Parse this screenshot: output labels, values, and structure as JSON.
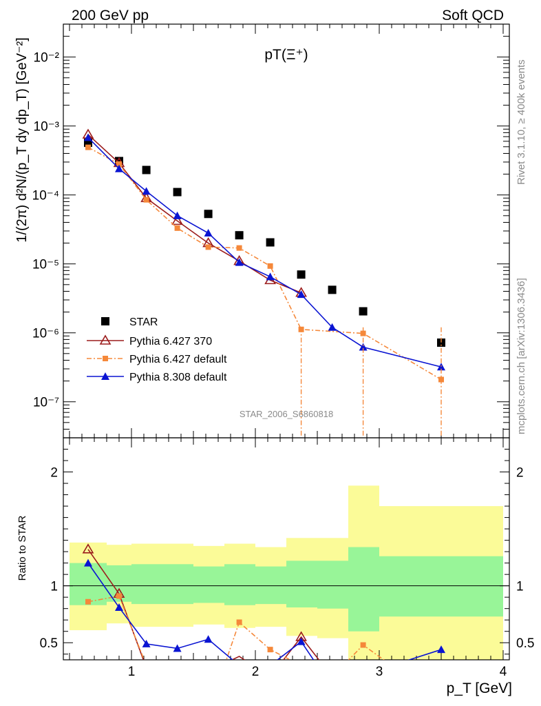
{
  "header": {
    "left": "200 GeV pp",
    "right": "Soft QCD",
    "side_rivet": "Rivet 3.1.10, ≥ 400k events",
    "side_mcplots": "mcplots.cern.ch [arXiv:1306.3436]",
    "watermark": "STAR_2006_S6860818"
  },
  "axes": {
    "ylabel_top": "1/(2π) d²N/(p_T dy dp_T) [GeV⁻²]",
    "ylabel_ratio": "Ratio to STAR",
    "xlabel": "p_T [GeV]",
    "top_yticks": [
      "10⁻⁷",
      "10⁻⁶",
      "10⁻⁵",
      "10⁻⁴",
      "10⁻³",
      "10⁻²"
    ],
    "ratio_yticks": [
      "0.5",
      "1",
      "2"
    ],
    "xticks": [
      "1",
      "2",
      "3",
      "4"
    ]
  },
  "colors": {
    "star": "#000000",
    "py6_370": "#9b1b1b",
    "py6_default": "#f5883a",
    "py8": "#0a14d2",
    "band_inner": "#98f598",
    "band_outer": "#fbfb98"
  },
  "chart_data": {
    "type": "scatter",
    "title": "pT(Ξ⁺)",
    "xlabel": "p_T [GeV]",
    "ylabel": "1/(2π) d²N/(p_T dy dp_T) [GeV⁻²]",
    "xlim": [
      0.45,
      4.05
    ],
    "ylim": [
      3e-08,
      0.03
    ],
    "yscale": "log",
    "legend_position": "bottom-left",
    "series": [
      {
        "name": "STAR",
        "marker": "square",
        "x": [
          0.65,
          0.9,
          1.12,
          1.37,
          1.62,
          1.87,
          2.12,
          2.37,
          2.62,
          2.87,
          3.5
        ],
        "y": [
          0.00057,
          0.00031,
          0.00023,
          0.00011,
          5.3e-05,
          2.6e-05,
          2.05e-05,
          7e-06,
          4.2e-06,
          2.05e-06,
          7.2e-07
        ]
      },
      {
        "name": "Pythia 6.427 370",
        "marker": "open-triangle",
        "x": [
          0.65,
          0.9,
          1.12,
          1.37,
          1.62,
          1.87,
          2.12,
          2.37
        ],
        "y": [
          0.00075,
          0.00029,
          9e-05,
          4.2e-05,
          2e-05,
          1.1e-05,
          5.8e-06,
          3.8e-06
        ]
      },
      {
        "name": "Pythia 6.427 default",
        "marker": "filled-square",
        "x": [
          0.65,
          0.9,
          1.12,
          1.37,
          1.62,
          1.87,
          2.12,
          2.37,
          2.87,
          3.5
        ],
        "y": [
          0.00049,
          0.00028,
          8.5e-05,
          3.3e-05,
          1.75e-05,
          1.7e-05,
          9.3e-06,
          1.12e-06,
          9.8e-07,
          2.1e-07
        ]
      },
      {
        "name": "Pythia 8.308 default",
        "marker": "filled-triangle",
        "x": [
          0.65,
          0.9,
          1.12,
          1.37,
          1.62,
          1.87,
          2.12,
          2.37,
          2.62,
          2.87,
          3.5
        ],
        "y": [
          0.00068,
          0.00024,
          0.000113,
          5e-05,
          2.8e-05,
          1.05e-05,
          6.5e-06,
          3.6e-06,
          1.2e-06,
          6.2e-07,
          3.2e-07
        ]
      }
    ],
    "ratio": {
      "ylabel": "Ratio to STAR",
      "ylim": [
        0.35,
        2.3
      ],
      "bands": [
        {
          "x0": 0.5,
          "x1": 0.8,
          "inner": [
            0.83,
            1.2
          ],
          "outer": [
            0.61,
            1.38
          ]
        },
        {
          "x0": 0.8,
          "x1": 1.0,
          "inner": [
            0.86,
            1.18
          ],
          "outer": [
            0.67,
            1.36
          ]
        },
        {
          "x0": 1.0,
          "x1": 1.25,
          "inner": [
            0.84,
            1.19
          ],
          "outer": [
            0.64,
            1.37
          ]
        },
        {
          "x0": 1.25,
          "x1": 1.5,
          "inner": [
            0.84,
            1.19
          ],
          "outer": [
            0.64,
            1.37
          ]
        },
        {
          "x0": 1.5,
          "x1": 1.75,
          "inner": [
            0.85,
            1.17
          ],
          "outer": [
            0.66,
            1.35
          ]
        },
        {
          "x0": 1.75,
          "x1": 2.0,
          "inner": [
            0.83,
            1.19
          ],
          "outer": [
            0.63,
            1.37
          ]
        },
        {
          "x0": 2.0,
          "x1": 2.25,
          "inner": [
            0.84,
            1.17
          ],
          "outer": [
            0.64,
            1.34
          ]
        },
        {
          "x0": 2.25,
          "x1": 2.5,
          "inner": [
            0.81,
            1.22
          ],
          "outer": [
            0.56,
            1.42
          ]
        },
        {
          "x0": 2.5,
          "x1": 2.75,
          "inner": [
            0.8,
            1.22
          ],
          "outer": [
            0.54,
            1.42
          ]
        },
        {
          "x0": 2.75,
          "x1": 3.0,
          "inner": [
            0.6,
            1.34
          ],
          "outer": [
            0.3,
            1.88
          ]
        },
        {
          "x0": 3.0,
          "x1": 4.0,
          "inner": [
            0.73,
            1.26
          ],
          "outer": [
            0.3,
            1.7
          ]
        }
      ],
      "series": [
        {
          "name": "Pythia 6.427 370",
          "x": [
            0.65,
            0.9,
            1.12,
            1.37
          ],
          "y": [
            1.32,
            0.93,
            0.28,
            0.28
          ]
        },
        {
          "name": "Pythia 6.427 370 (2nd)",
          "x": [
            1.62,
            1.87,
            2.12,
            2.37,
            2.62
          ],
          "y": [
            0.25,
            0.38,
            0.2,
            0.55,
            0.2
          ]
        },
        {
          "name": "Pythia 6.427 default",
          "x": [
            0.65,
            0.9,
            1.12,
            1.37
          ],
          "y": [
            0.86,
            0.91,
            0.3,
            0.3
          ]
        },
        {
          "name": "Pythia 6.427 default (2nd)",
          "x": [
            1.75,
            1.87,
            2.12,
            2.37,
            2.62,
            2.87,
            3.1
          ],
          "y": [
            0.3,
            0.68,
            0.44,
            0.3,
            0.2,
            0.48,
            0.3
          ]
        },
        {
          "name": "Pythia 8.308 default",
          "x": [
            0.65,
            0.9,
            1.12,
            1.37,
            1.62,
            1.87,
            2.12,
            2.37,
            2.5
          ],
          "y": [
            1.2,
            0.81,
            0.49,
            0.45,
            0.53,
            0.3,
            0.3,
            0.51,
            0.3
          ]
        },
        {
          "name": "Pythia 8.308 default (3.5)",
          "x": [
            3.1,
            3.5
          ],
          "y": [
            0.3,
            0.44
          ]
        }
      ]
    }
  }
}
